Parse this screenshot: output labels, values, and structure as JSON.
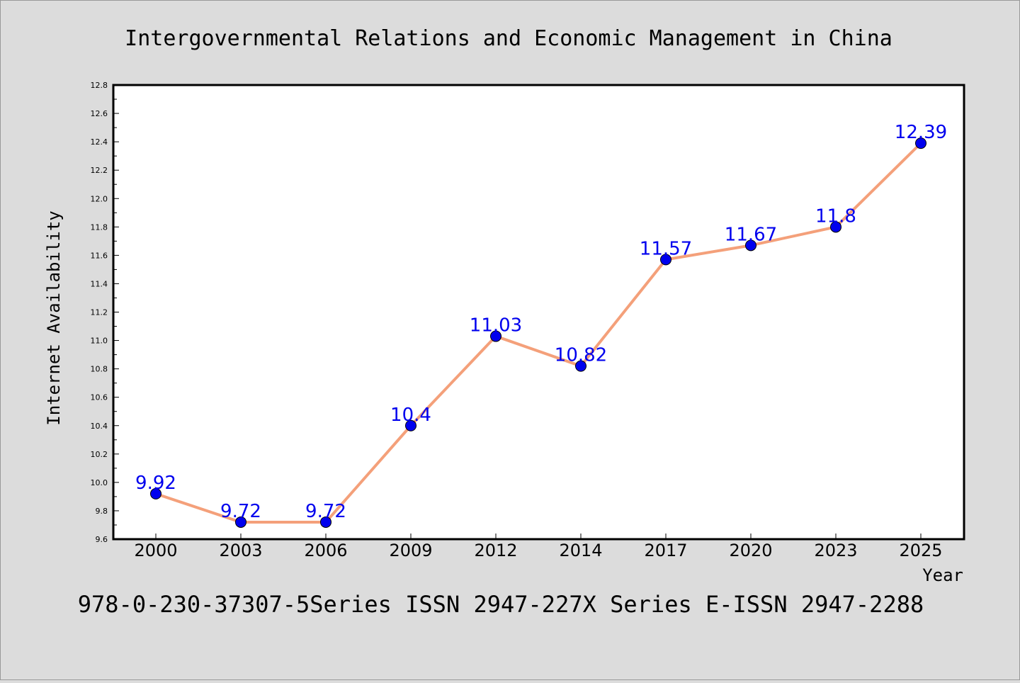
{
  "chart_data": {
    "type": "line",
    "title": "Intergovernmental Relations and Economic Management in China",
    "xlabel": "Year",
    "ylabel": "Internet Availability",
    "footer": "978-0-230-37307-5Series ISSN 2947-227X Series E-ISSN 2947-2288",
    "categories": [
      "2000",
      "2003",
      "2006",
      "2009",
      "2012",
      "2014",
      "2017",
      "2020",
      "2023",
      "2025"
    ],
    "series": [
      {
        "values": [
          9.92,
          9.72,
          9.72,
          10.4,
          11.03,
          10.82,
          11.57,
          11.67,
          11.8,
          12.39
        ],
        "data_labels": [
          "9.92",
          "9.72",
          "9.72",
          "10.4",
          "11.03",
          "10.82",
          "11.57",
          "11.67",
          "11.8",
          "12.39"
        ]
      }
    ],
    "ylim": [
      9.6,
      12.8
    ],
    "yticks": [
      "9.6",
      "9.8",
      "10.0",
      "10.2",
      "10.4",
      "10.6",
      "10.8",
      "11.0",
      "11.2",
      "11.4",
      "11.6",
      "11.8",
      "12.0",
      "12.2",
      "12.4",
      "12.6",
      "12.8"
    ],
    "grid": false,
    "legend": "none",
    "colors": {
      "background": "#dcdcdc",
      "plot_background": "#ffffff",
      "line": "#f4a07a",
      "marker": "#0000ee",
      "data_label": "#0000ee"
    }
  }
}
